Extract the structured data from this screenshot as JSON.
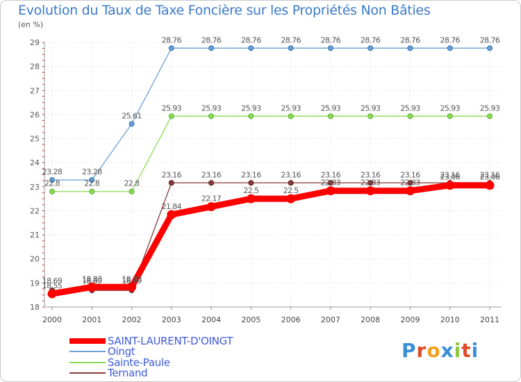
{
  "chart_data": {
    "type": "line",
    "title": "Evolution du Taux de Taxe Foncière sur les Propriétés Non Bâties",
    "subtitle": "(en %)",
    "xlabel": "",
    "ylabel": "(en %)",
    "ylim": [
      18,
      29
    ],
    "yticks": [
      18,
      19,
      20,
      21,
      22,
      23,
      24,
      25,
      26,
      27,
      28,
      29
    ],
    "categories": [
      "2000",
      "2001",
      "2002",
      "2003",
      "2004",
      "2005",
      "2006",
      "2007",
      "2008",
      "2009",
      "2010",
      "2011"
    ],
    "series": [
      {
        "name": "SAINT-LAURENT-D'OINGT",
        "color": "#ff0000",
        "labels": [
          "18.55",
          "18.83",
          "18.83",
          "21.84",
          "22.17",
          "22.5",
          "22.5",
          "22.83",
          "22.83",
          "22.83",
          "23.06",
          "23.06"
        ],
        "values": [
          18.55,
          18.83,
          18.83,
          21.84,
          22.17,
          22.5,
          22.5,
          22.83,
          22.83,
          22.83,
          23.06,
          23.06
        ]
      },
      {
        "name": "Oingt",
        "color": "#6aa0d8",
        "labels": [
          "23.28",
          "23.28",
          "25.61",
          "28.76",
          "28.76",
          "28.76",
          "28.76",
          "28.76",
          "28.76",
          "28.76",
          "28.76",
          "28.76"
        ],
        "values": [
          23.28,
          23.28,
          25.61,
          28.76,
          28.76,
          28.76,
          28.76,
          28.76,
          28.76,
          28.76,
          28.76,
          28.76
        ]
      },
      {
        "name": "Sainte-Paule",
        "color": "#88dd55",
        "labels": [
          "22.8",
          "22.8",
          "22.8",
          "25.93",
          "25.93",
          "25.93",
          "25.93",
          "25.93",
          "25.93",
          "25.93",
          "25.93",
          "25.93"
        ],
        "values": [
          22.8,
          22.8,
          22.8,
          25.93,
          25.93,
          25.93,
          25.93,
          25.93,
          25.93,
          25.93,
          25.93,
          25.93
        ]
      },
      {
        "name": "Ternand",
        "color": "#8a3a3a",
        "labels": [
          "18.69",
          "18.69",
          "18.69",
          "23.16",
          "23.16",
          "23.16",
          "23.16",
          "23.16",
          "23.16",
          "23.16",
          "23.16",
          "23.16"
        ],
        "values": [
          18.69,
          18.69,
          18.69,
          23.16,
          23.16,
          23.16,
          23.16,
          23.16,
          23.16,
          23.16,
          23.16,
          23.16
        ]
      }
    ],
    "legend": {
      "placement": "bottom-left",
      "items": [
        "SAINT-LAURENT-D'OINGT",
        "Oingt",
        "Sainte-Paule",
        "Ternand"
      ]
    }
  },
  "logo": {
    "letters": [
      "P",
      "r",
      "o",
      "x",
      "i",
      "t",
      "i"
    ]
  }
}
